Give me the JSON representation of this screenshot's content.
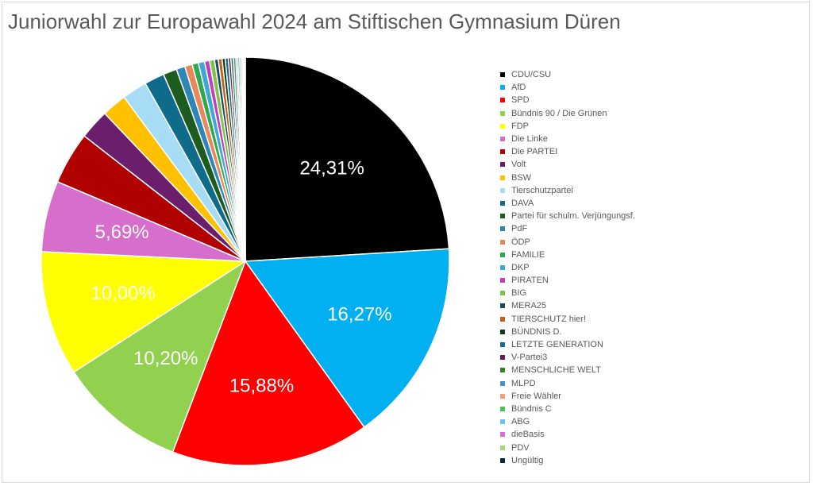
{
  "chart_data": {
    "type": "pie",
    "title": "Juniorwahl zur Europawahl 2024 am Stiftischen Gymnasium Düren",
    "legend_position": "right",
    "slices": [
      {
        "label": "CDU/CSU",
        "value": 24.31,
        "color": "#000000",
        "data_label": "24,31%"
      },
      {
        "label": "AfD",
        "value": 16.27,
        "color": "#00B0F0",
        "data_label": "16,27%"
      },
      {
        "label": "SPD",
        "value": 15.88,
        "color": "#FF0000",
        "data_label": "15,88%"
      },
      {
        "label": "Bündnis 90 / Die Grünen",
        "value": 10.2,
        "color": "#92D050",
        "data_label": "10,20%"
      },
      {
        "label": "FDP",
        "value": 10.0,
        "color": "#FFFF00",
        "data_label": "10,00%"
      },
      {
        "label": "Die Linke",
        "value": 5.69,
        "color": "#D86ECC",
        "data_label": "5,69%"
      },
      {
        "label": "Die PARTEI",
        "value": 4.2,
        "color": "#B00000",
        "data_label": ""
      },
      {
        "label": "Volt",
        "value": 2.4,
        "color": "#6B1E6B",
        "data_label": ""
      },
      {
        "label": "BSW",
        "value": 2.0,
        "color": "#FFC000",
        "data_label": ""
      },
      {
        "label": "Tierschutzpartei",
        "value": 2.0,
        "color": "#A6DCF5",
        "data_label": ""
      },
      {
        "label": "DAVA",
        "value": 1.6,
        "color": "#0E6B8A",
        "data_label": ""
      },
      {
        "label": "Partei für schulm. Verjüngungsf.",
        "value": 1.1,
        "color": "#1E5B1E",
        "data_label": ""
      },
      {
        "label": "PdF",
        "value": 0.7,
        "color": "#2E86B8",
        "data_label": ""
      },
      {
        "label": "ÖDP",
        "value": 0.6,
        "color": "#E8875A",
        "data_label": ""
      },
      {
        "label": "FAMILIE",
        "value": 0.5,
        "color": "#2EAA4E",
        "data_label": ""
      },
      {
        "label": "DKP",
        "value": 0.5,
        "color": "#3FA6D6",
        "data_label": ""
      },
      {
        "label": "PIRATEN",
        "value": 0.4,
        "color": "#C03FC0",
        "data_label": ""
      },
      {
        "label": "BIG",
        "value": 0.4,
        "color": "#7FC34A",
        "data_label": ""
      },
      {
        "label": "MERA25",
        "value": 0.3,
        "color": "#1A4C60",
        "data_label": ""
      },
      {
        "label": "TIERSCHUTZ hier!",
        "value": 0.3,
        "color": "#C0601A",
        "data_label": ""
      },
      {
        "label": "BÜNDNIS D.",
        "value": 0.25,
        "color": "#163A16",
        "data_label": ""
      },
      {
        "label": "LETZTE GENERATION",
        "value": 0.25,
        "color": "#1A6A8A",
        "data_label": ""
      },
      {
        "label": "V-Partei3",
        "value": 0.2,
        "color": "#5A1E5A",
        "data_label": ""
      },
      {
        "label": "MENSCHLICHE WELT",
        "value": 0.2,
        "color": "#3A7A2A",
        "data_label": ""
      },
      {
        "label": "MLPD",
        "value": 0.2,
        "color": "#4A90C8",
        "data_label": ""
      },
      {
        "label": "Freie Wähler",
        "value": 0.15,
        "color": "#F0A07A",
        "data_label": ""
      },
      {
        "label": "Bündnis C",
        "value": 0.15,
        "color": "#4CC05C",
        "data_label": ""
      },
      {
        "label": "ABG",
        "value": 0.15,
        "color": "#6CC4EC",
        "data_label": ""
      },
      {
        "label": "dieBasis",
        "value": 0.1,
        "color": "#DA70D6",
        "data_label": ""
      },
      {
        "label": "PDV",
        "value": 0.1,
        "color": "#A8D870",
        "data_label": ""
      },
      {
        "label": "Ungültig",
        "value": 0.1,
        "color": "#0B2A3E",
        "data_label": ""
      }
    ]
  }
}
